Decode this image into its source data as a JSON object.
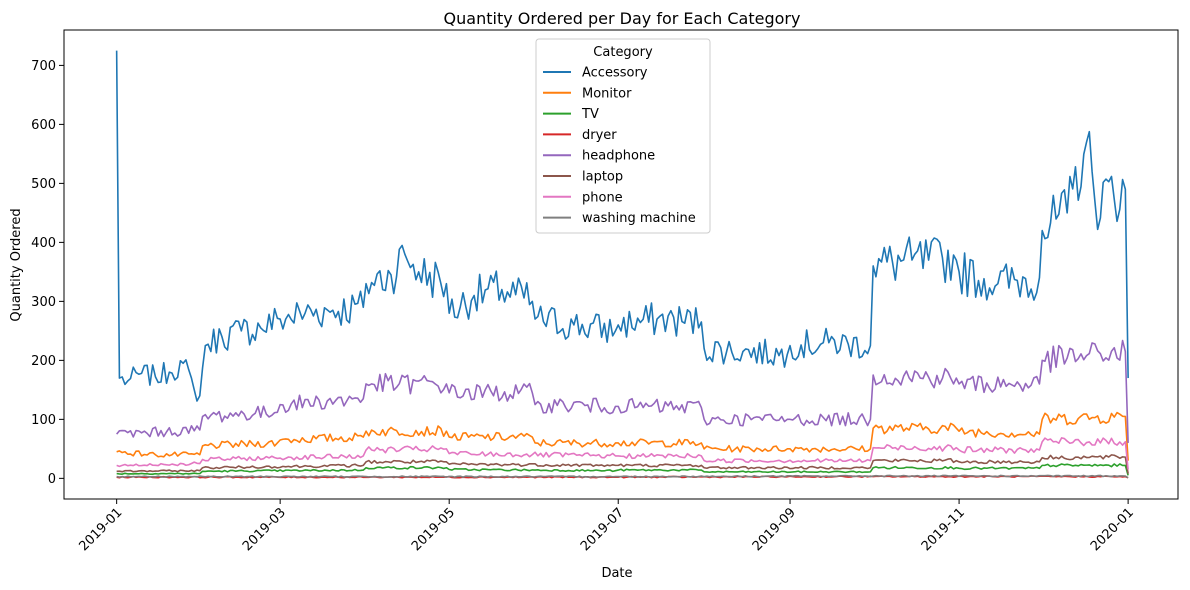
{
  "chart_data": {
    "type": "line",
    "title": "Quantity Ordered per Day for Each Category",
    "xlabel": "Date",
    "ylabel": "Quantity Ordered",
    "xlim": [
      "2018-12-13",
      "2020-01-19"
    ],
    "ylim": [
      -35,
      760
    ],
    "x_ticks": [
      "2019-01-01",
      "2019-03-01",
      "2019-05-01",
      "2019-07-01",
      "2019-09-01",
      "2019-11-01",
      "2020-01-01"
    ],
    "x_tick_labels": [
      "2019-01",
      "2019-03",
      "2019-05",
      "2019-07",
      "2019-09",
      "2019-11",
      "2020-01"
    ],
    "y_ticks": [
      0,
      100,
      200,
      300,
      400,
      500,
      600,
      700
    ],
    "grid": false,
    "legend": {
      "title": "Category",
      "placement": "upper center"
    },
    "series": [
      {
        "name": "Accessory",
        "color": "#1f77b4",
        "points": [
          [
            "2019-01-01",
            725
          ],
          [
            "2019-01-02",
            170
          ],
          [
            "2019-01-05",
            165
          ],
          [
            "2019-01-10",
            178
          ],
          [
            "2019-01-15",
            172
          ],
          [
            "2019-01-20",
            180
          ],
          [
            "2019-01-25",
            195
          ],
          [
            "2019-01-29",
            150
          ],
          [
            "2019-01-31",
            140
          ],
          [
            "2019-02-02",
            225
          ],
          [
            "2019-02-08",
            240
          ],
          [
            "2019-02-15",
            250
          ],
          [
            "2019-02-22",
            255
          ],
          [
            "2019-03-01",
            270
          ],
          [
            "2019-03-10",
            280
          ],
          [
            "2019-03-20",
            285
          ],
          [
            "2019-03-31",
            290
          ],
          [
            "2019-04-01",
            330
          ],
          [
            "2019-04-10",
            345
          ],
          [
            "2019-04-15",
            380
          ],
          [
            "2019-04-20",
            350
          ],
          [
            "2019-04-30",
            330
          ],
          [
            "2019-05-01",
            280
          ],
          [
            "2019-05-10",
            310
          ],
          [
            "2019-05-20",
            320
          ],
          [
            "2019-05-31",
            300
          ],
          [
            "2019-06-01",
            270
          ],
          [
            "2019-06-15",
            260
          ],
          [
            "2019-06-30",
            250
          ],
          [
            "2019-07-01",
            260
          ],
          [
            "2019-07-15",
            270
          ],
          [
            "2019-07-31",
            265
          ],
          [
            "2019-08-01",
            220
          ],
          [
            "2019-08-15",
            215
          ],
          [
            "2019-08-31",
            210
          ],
          [
            "2019-09-01",
            225
          ],
          [
            "2019-09-15",
            230
          ],
          [
            "2019-09-30",
            225
          ],
          [
            "2019-10-01",
            360
          ],
          [
            "2019-10-15",
            370
          ],
          [
            "2019-10-31",
            370
          ],
          [
            "2019-11-01",
            350
          ],
          [
            "2019-11-15",
            330
          ],
          [
            "2019-11-30",
            340
          ],
          [
            "2019-12-01",
            420
          ],
          [
            "2019-12-10",
            450
          ],
          [
            "2019-12-17",
            570
          ],
          [
            "2019-12-20",
            470
          ],
          [
            "2019-12-31",
            490
          ],
          [
            "2020-01-01",
            170
          ]
        ]
      },
      {
        "name": "Monitor",
        "color": "#ff7f0e",
        "points": [
          [
            "2019-01-01",
            45
          ],
          [
            "2019-01-15",
            40
          ],
          [
            "2019-01-31",
            40
          ],
          [
            "2019-02-01",
            55
          ],
          [
            "2019-02-28",
            60
          ],
          [
            "2019-03-01",
            65
          ],
          [
            "2019-03-31",
            70
          ],
          [
            "2019-04-01",
            80
          ],
          [
            "2019-04-30",
            80
          ],
          [
            "2019-05-01",
            70
          ],
          [
            "2019-05-31",
            70
          ],
          [
            "2019-06-01",
            60
          ],
          [
            "2019-06-30",
            60
          ],
          [
            "2019-07-01",
            60
          ],
          [
            "2019-07-31",
            60
          ],
          [
            "2019-08-01",
            50
          ],
          [
            "2019-08-31",
            50
          ],
          [
            "2019-09-01",
            50
          ],
          [
            "2019-09-30",
            50
          ],
          [
            "2019-10-01",
            85
          ],
          [
            "2019-10-31",
            85
          ],
          [
            "2019-11-01",
            80
          ],
          [
            "2019-11-30",
            75
          ],
          [
            "2019-12-01",
            100
          ],
          [
            "2019-12-31",
            105
          ],
          [
            "2020-01-01",
            30
          ]
        ]
      },
      {
        "name": "TV",
        "color": "#2ca02c",
        "points": [
          [
            "2019-01-01",
            8
          ],
          [
            "2019-01-31",
            8
          ],
          [
            "2019-02-01",
            12
          ],
          [
            "2019-03-31",
            14
          ],
          [
            "2019-04-01",
            18
          ],
          [
            "2019-04-30",
            18
          ],
          [
            "2019-05-01",
            15
          ],
          [
            "2019-06-30",
            13
          ],
          [
            "2019-07-01",
            14
          ],
          [
            "2019-07-31",
            14
          ],
          [
            "2019-08-01",
            11
          ],
          [
            "2019-09-30",
            11
          ],
          [
            "2019-10-01",
            18
          ],
          [
            "2019-10-31",
            18
          ],
          [
            "2019-11-01",
            17
          ],
          [
            "2019-11-30",
            17
          ],
          [
            "2019-12-01",
            22
          ],
          [
            "2019-12-31",
            22
          ],
          [
            "2020-01-01",
            5
          ]
        ]
      },
      {
        "name": "dryer",
        "color": "#d62728",
        "points": [
          [
            "2019-01-01",
            2
          ],
          [
            "2019-04-01",
            2
          ],
          [
            "2019-07-01",
            2
          ],
          [
            "2019-10-01",
            3
          ],
          [
            "2019-12-31",
            3
          ],
          [
            "2020-01-01",
            1
          ]
        ]
      },
      {
        "name": "headphone",
        "color": "#9467bd",
        "points": [
          [
            "2019-01-01",
            75
          ],
          [
            "2019-01-31",
            82
          ],
          [
            "2019-02-01",
            105
          ],
          [
            "2019-02-28",
            112
          ],
          [
            "2019-03-01",
            125
          ],
          [
            "2019-03-31",
            135
          ],
          [
            "2019-04-01",
            160
          ],
          [
            "2019-04-30",
            160
          ],
          [
            "2019-05-01",
            145
          ],
          [
            "2019-05-31",
            145
          ],
          [
            "2019-06-01",
            125
          ],
          [
            "2019-06-30",
            122
          ],
          [
            "2019-07-01",
            122
          ],
          [
            "2019-07-31",
            120
          ],
          [
            "2019-08-01",
            100
          ],
          [
            "2019-08-31",
            100
          ],
          [
            "2019-09-01",
            100
          ],
          [
            "2019-09-30",
            100
          ],
          [
            "2019-10-01",
            175
          ],
          [
            "2019-10-31",
            170
          ],
          [
            "2019-11-01",
            160
          ],
          [
            "2019-11-30",
            160
          ],
          [
            "2019-12-01",
            200
          ],
          [
            "2019-12-31",
            215
          ],
          [
            "2020-01-01",
            60
          ]
        ]
      },
      {
        "name": "laptop",
        "color": "#8c564b",
        "points": [
          [
            "2019-01-01",
            12
          ],
          [
            "2019-01-31",
            13
          ],
          [
            "2019-02-01",
            18
          ],
          [
            "2019-03-31",
            22
          ],
          [
            "2019-04-01",
            28
          ],
          [
            "2019-04-30",
            28
          ],
          [
            "2019-05-01",
            24
          ],
          [
            "2019-06-30",
            22
          ],
          [
            "2019-07-01",
            22
          ],
          [
            "2019-07-31",
            22
          ],
          [
            "2019-08-01",
            18
          ],
          [
            "2019-09-30",
            18
          ],
          [
            "2019-10-01",
            30
          ],
          [
            "2019-10-31",
            30
          ],
          [
            "2019-11-01",
            28
          ],
          [
            "2019-11-30",
            28
          ],
          [
            "2019-12-01",
            35
          ],
          [
            "2019-12-31",
            36
          ],
          [
            "2020-01-01",
            8
          ]
        ]
      },
      {
        "name": "phone",
        "color": "#e377c2",
        "points": [
          [
            "2019-01-01",
            22
          ],
          [
            "2019-01-31",
            25
          ],
          [
            "2019-02-01",
            32
          ],
          [
            "2019-03-31",
            38
          ],
          [
            "2019-04-01",
            48
          ],
          [
            "2019-04-30",
            50
          ],
          [
            "2019-05-01",
            42
          ],
          [
            "2019-06-30",
            38
          ],
          [
            "2019-07-01",
            38
          ],
          [
            "2019-07-31",
            38
          ],
          [
            "2019-08-01",
            30
          ],
          [
            "2019-09-30",
            30
          ],
          [
            "2019-10-01",
            52
          ],
          [
            "2019-10-31",
            52
          ],
          [
            "2019-11-01",
            48
          ],
          [
            "2019-11-30",
            48
          ],
          [
            "2019-12-01",
            62
          ],
          [
            "2019-12-31",
            62
          ],
          [
            "2020-01-01",
            15
          ]
        ]
      },
      {
        "name": "washing machine",
        "color": "#7f7f7f",
        "points": [
          [
            "2019-01-01",
            3
          ],
          [
            "2019-04-01",
            3
          ],
          [
            "2019-07-01",
            3
          ],
          [
            "2019-10-01",
            4
          ],
          [
            "2019-12-31",
            4
          ],
          [
            "2020-01-01",
            1
          ]
        ]
      }
    ]
  }
}
